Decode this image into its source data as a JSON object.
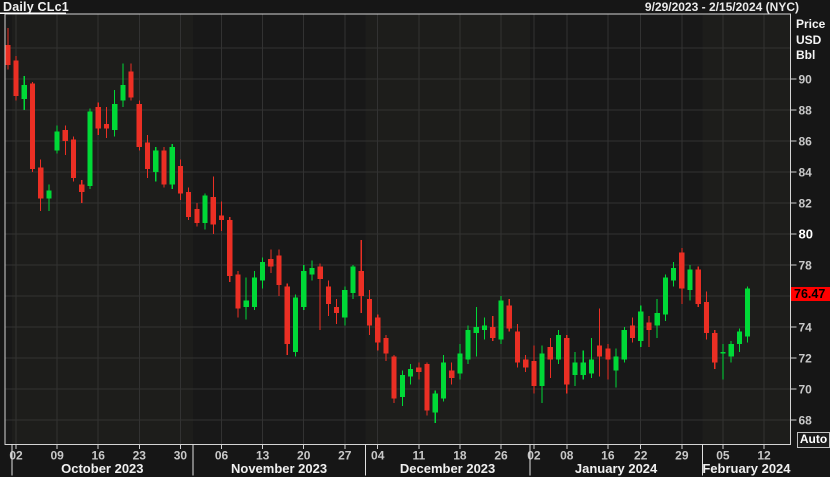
{
  "header": {
    "title": "Daily CLc1",
    "date_range": "9/29/2023 - 2/15/2024 (NYC)"
  },
  "price_axis": {
    "unit_lines": [
      "Price",
      "USD",
      "Bbl"
    ],
    "grid_prices": [
      92,
      90,
      88,
      86,
      84,
      82,
      80,
      78,
      76,
      74,
      72,
      70,
      68
    ],
    "labeled_ticks": [
      90,
      88,
      86,
      84,
      82,
      80,
      78,
      76,
      74,
      72,
      70,
      68
    ],
    "bold_tick": 80,
    "last_price": "76.47",
    "auto_label": "Auto"
  },
  "time_axis": {
    "week_ticks": [
      {
        "label": "02",
        "i": 1
      },
      {
        "label": "09",
        "i": 6
      },
      {
        "label": "16",
        "i": 11
      },
      {
        "label": "23",
        "i": 16
      },
      {
        "label": "30",
        "i": 21
      },
      {
        "label": "06",
        "i": 26
      },
      {
        "label": "13",
        "i": 31
      },
      {
        "label": "20",
        "i": 36
      },
      {
        "label": "27",
        "i": 41
      },
      {
        "label": "04",
        "i": 45
      },
      {
        "label": "11",
        "i": 50
      },
      {
        "label": "18",
        "i": 55
      },
      {
        "label": "26",
        "i": 60
      },
      {
        "label": "02",
        "i": 64
      },
      {
        "label": "08",
        "i": 68
      },
      {
        "label": "16",
        "i": 73
      },
      {
        "label": "22",
        "i": 77
      },
      {
        "label": "29",
        "i": 82
      },
      {
        "label": "05",
        "i": 87
      },
      {
        "label": "12",
        "i": 92
      }
    ],
    "months": [
      {
        "label": "October 2023",
        "start_i": 1,
        "end_i": 22,
        "shaded": true
      },
      {
        "label": "November 2023",
        "start_i": 23,
        "end_i": 43,
        "shaded": false
      },
      {
        "label": "December 2023",
        "start_i": 44,
        "end_i": 63,
        "shaded": true
      },
      {
        "label": "January 2024",
        "start_i": 64,
        "end_i": 84,
        "shaded": false
      },
      {
        "label": "February 2024",
        "start_i": 85,
        "end_i": 95,
        "shaded": true
      }
    ]
  },
  "chart_data": {
    "type": "candlestick",
    "title": "Daily CLc1",
    "symbol": "CLc1",
    "interval": "Daily",
    "ylabel": "Price USD Bbl",
    "ylim": [
      67,
      93.8
    ],
    "grid": true,
    "legend_position": "none",
    "up_color": "#00d937",
    "down_color": "#eb2f24",
    "band_color": "#1d1d1b",
    "plot_bg": "#181818",
    "grid_color": "#323232",
    "border_color": "#d4d4d4",
    "tick_text_color": "#c8c8c8",
    "month_text_color": "#f0f0f0",
    "badge_bg": "#ff0000",
    "candles": [
      [
        "09/29",
        92.2,
        93.3,
        90.6,
        90.9
      ],
      [
        "10/02",
        91.2,
        91.5,
        88.6,
        88.9
      ],
      [
        "10/03",
        88.7,
        90.2,
        88.0,
        89.6
      ],
      [
        "10/04",
        89.7,
        89.8,
        84.0,
        84.2
      ],
      [
        "10/05",
        84.3,
        84.8,
        81.5,
        82.3
      ],
      [
        "10/06",
        82.3,
        83.2,
        81.5,
        82.8
      ],
      [
        "10/09",
        85.4,
        87.0,
        85.2,
        86.6
      ],
      [
        "10/10",
        86.7,
        87.0,
        85.1,
        86.0
      ],
      [
        "10/11",
        86.1,
        86.3,
        83.4,
        83.6
      ],
      [
        "10/12",
        83.2,
        83.5,
        82.0,
        82.7
      ],
      [
        "10/13",
        83.1,
        88.1,
        82.9,
        87.9
      ],
      [
        "10/16",
        88.2,
        88.5,
        86.4,
        86.8
      ],
      [
        "10/17",
        87.1,
        88.2,
        86.2,
        86.8
      ],
      [
        "10/18",
        86.7,
        89.3,
        86.3,
        88.4
      ],
      [
        "10/19",
        88.6,
        91.0,
        88.2,
        89.6
      ],
      [
        "10/20",
        90.5,
        91.0,
        88.6,
        88.8
      ],
      [
        "10/23",
        88.4,
        88.6,
        85.4,
        85.6
      ],
      [
        "10/24",
        85.9,
        86.4,
        83.6,
        84.2
      ],
      [
        "10/25",
        84.0,
        85.6,
        83.4,
        85.4
      ],
      [
        "10/26",
        85.4,
        85.6,
        83.0,
        83.2
      ],
      [
        "10/27",
        83.2,
        85.8,
        82.9,
        85.6
      ],
      [
        "10/30",
        84.4,
        84.8,
        82.2,
        82.6
      ],
      [
        "10/31",
        82.7,
        83.0,
        80.9,
        81.1
      ],
      [
        "11/01",
        81.6,
        82.0,
        80.5,
        80.7
      ],
      [
        "11/02",
        80.7,
        82.6,
        80.3,
        82.5
      ],
      [
        "11/03",
        82.4,
        83.7,
        80.0,
        80.6
      ],
      [
        "11/06",
        81.2,
        82.1,
        80.2,
        80.9
      ],
      [
        "11/07",
        80.9,
        81.1,
        76.9,
        77.3
      ],
      [
        "11/08",
        77.4,
        77.6,
        74.6,
        75.2
      ],
      [
        "11/09",
        75.3,
        77.2,
        74.5,
        75.7
      ],
      [
        "11/10",
        75.3,
        77.6,
        75.1,
        77.2
      ],
      [
        "11/13",
        77.0,
        78.5,
        76.5,
        78.2
      ],
      [
        "11/14",
        78.4,
        79.0,
        77.5,
        77.9
      ],
      [
        "11/15",
        78.6,
        79.0,
        76.0,
        76.7
      ],
      [
        "11/16",
        76.6,
        76.8,
        72.2,
        72.9
      ],
      [
        "11/17",
        72.4,
        76.1,
        72.1,
        75.9
      ],
      [
        "11/20",
        75.3,
        78.0,
        75.1,
        77.6
      ],
      [
        "11/21",
        77.4,
        78.3,
        77.0,
        77.8
      ],
      [
        "11/22",
        77.9,
        78.1,
        73.8,
        77.1
      ],
      [
        "11/24",
        76.6,
        77.0,
        74.7,
        75.5
      ],
      [
        "11/27",
        75.3,
        75.8,
        74.2,
        74.9
      ],
      [
        "11/28",
        74.6,
        76.6,
        74.1,
        76.4
      ],
      [
        "11/29",
        76.2,
        78.0,
        75.8,
        77.9
      ],
      [
        "11/30",
        77.6,
        79.6,
        74.9,
        76.0
      ],
      [
        "12/01",
        75.8,
        76.4,
        73.5,
        74.1
      ],
      [
        "12/04",
        74.6,
        74.8,
        72.5,
        73.0
      ],
      [
        "12/05",
        73.3,
        73.5,
        71.8,
        72.3
      ],
      [
        "12/06",
        72.1,
        72.2,
        69.1,
        69.4
      ],
      [
        "12/07",
        69.5,
        71.2,
        68.9,
        70.9
      ],
      [
        "12/08",
        70.8,
        71.6,
        70.3,
        71.3
      ],
      [
        "12/11",
        71.4,
        71.7,
        70.6,
        71.1
      ],
      [
        "12/12",
        71.6,
        71.7,
        68.3,
        68.6
      ],
      [
        "12/13",
        68.5,
        69.9,
        67.8,
        69.7
      ],
      [
        "12/14",
        69.4,
        72.2,
        69.2,
        71.7
      ],
      [
        "12/15",
        71.2,
        71.7,
        70.3,
        70.7
      ],
      [
        "12/18",
        71.0,
        72.9,
        70.6,
        72.3
      ],
      [
        "12/19",
        71.9,
        74.1,
        71.6,
        73.8
      ],
      [
        "12/20",
        73.6,
        75.3,
        72.1,
        74.0
      ],
      [
        "12/21",
        73.8,
        74.6,
        73.2,
        74.1
      ],
      [
        "12/22",
        74.0,
        74.7,
        73.1,
        73.3
      ],
      [
        "12/26",
        73.2,
        76.0,
        72.9,
        75.7
      ],
      [
        "12/27",
        75.4,
        75.8,
        73.7,
        73.9
      ],
      [
        "12/28",
        73.7,
        74.2,
        71.4,
        71.7
      ],
      [
        "12/29",
        71.9,
        72.2,
        71.1,
        71.4
      ],
      [
        "01/02",
        71.8,
        72.8,
        69.7,
        70.2
      ],
      [
        "01/03",
        70.2,
        72.8,
        69.1,
        72.3
      ],
      [
        "01/04",
        72.7,
        73.3,
        70.7,
        71.9
      ],
      [
        "01/05",
        71.9,
        73.8,
        71.6,
        73.5
      ],
      [
        "01/08",
        73.3,
        73.5,
        69.7,
        70.3
      ],
      [
        "01/09",
        70.9,
        72.4,
        70.2,
        71.7
      ],
      [
        "01/10",
        70.9,
        72.5,
        70.6,
        71.7
      ],
      [
        "01/11",
        71.0,
        73.3,
        70.7,
        71.9
      ],
      [
        "01/12",
        72.8,
        75.2,
        70.8,
        72.1
      ],
      [
        "01/16",
        72.6,
        72.9,
        70.6,
        71.9
      ],
      [
        "01/17",
        71.2,
        72.6,
        70.1,
        72.1
      ],
      [
        "01/18",
        71.9,
        74.0,
        71.7,
        73.8
      ],
      [
        "01/19",
        74.1,
        74.6,
        73.0,
        73.3
      ],
      [
        "01/22",
        73.1,
        75.4,
        72.7,
        75.0
      ],
      [
        "01/23",
        74.3,
        74.7,
        72.7,
        73.8
      ],
      [
        "01/24",
        74.1,
        75.8,
        73.3,
        74.9
      ],
      [
        "01/25",
        74.8,
        77.4,
        74.4,
        77.2
      ],
      [
        "01/26",
        77.0,
        78.2,
        76.6,
        77.8
      ],
      [
        "01/29",
        78.8,
        79.1,
        75.5,
        76.5
      ],
      [
        "01/30",
        76.4,
        78.0,
        75.7,
        77.7
      ],
      [
        "01/31",
        77.7,
        77.9,
        75.3,
        75.5
      ],
      [
        "02/01",
        75.6,
        76.3,
        73.2,
        73.6
      ],
      [
        "02/02",
        73.6,
        73.8,
        71.3,
        71.7
      ],
      [
        "02/05",
        72.3,
        72.9,
        70.6,
        72.4
      ],
      [
        "02/06",
        72.1,
        73.1,
        71.7,
        72.9
      ],
      [
        "02/07",
        72.9,
        73.9,
        72.4,
        73.7
      ],
      [
        "02/08",
        73.4,
        76.6,
        73.0,
        76.47
      ]
    ]
  }
}
